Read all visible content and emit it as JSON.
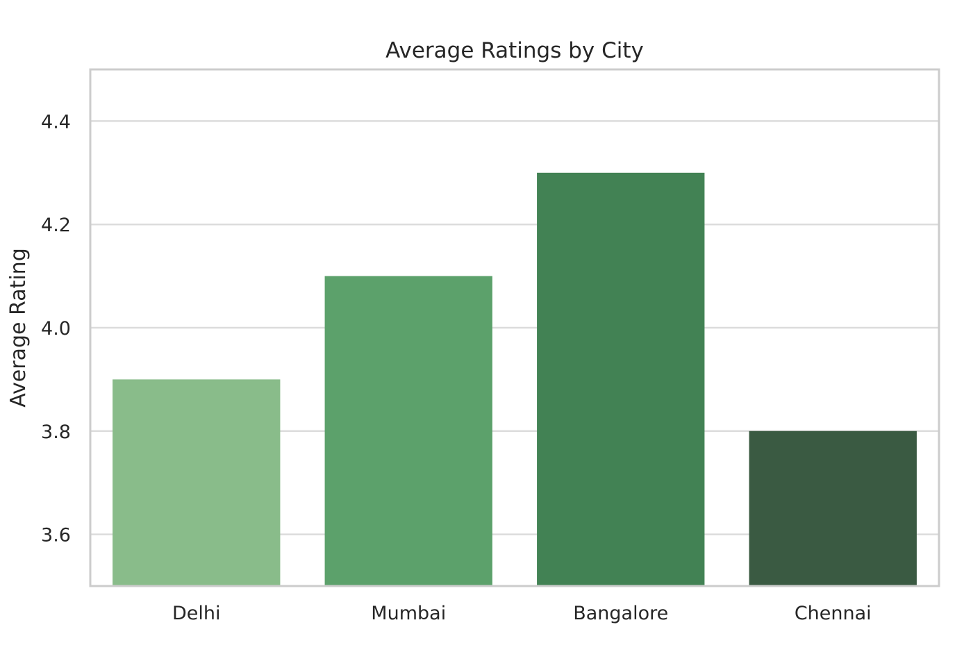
{
  "chart_data": {
    "type": "bar",
    "title": "Average Ratings by City",
    "xlabel": "",
    "ylabel": "Average Rating",
    "categories": [
      "Delhi",
      "Mumbai",
      "Bangalore",
      "Chennai"
    ],
    "values": [
      3.9,
      4.1,
      4.3,
      3.8
    ],
    "colors": [
      "#89bc8a",
      "#5ca16b",
      "#428254",
      "#3a5a42"
    ],
    "ylim": [
      3.5,
      4.5
    ],
    "yticks": [
      3.6,
      3.8,
      4.0,
      4.2,
      4.4
    ],
    "ytick_labels": [
      "3.6",
      "3.8",
      "4.0",
      "4.2",
      "4.4"
    ],
    "grid": "horizontal",
    "legend": "none"
  }
}
